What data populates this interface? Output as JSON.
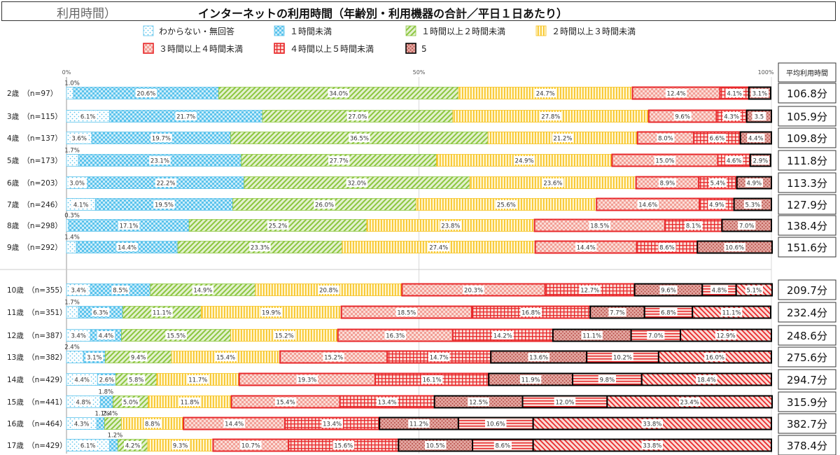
{
  "title": {
    "prefix": "利用時間）",
    "main": "インターネットの利用時間（年齢別・利用機器の合計／平日１日あたり）"
  },
  "chart_data": {
    "type": "bar",
    "orientation": "horizontal",
    "stacked": true,
    "axis_ticks": [
      "0%",
      "50%",
      "100%"
    ],
    "xlim": [
      0,
      100
    ],
    "legend": [
      "わからない・無回答",
      "１時間未満",
      "１時間以上２時間未満",
      "２時間以上３時間未満",
      "３時間以上４時間未満",
      "４時間以上５時間未満",
      "5"
    ],
    "avg_header": "平均利用時間",
    "rows": [
      {
        "label": "2歳　（n=97）",
        "values": [
          1.0,
          20.6,
          34.0,
          24.7,
          12.4,
          4.1,
          3.1
        ],
        "labels": [
          "1.0%",
          "20.6%",
          "34.0%",
          "24.7%",
          "12.4%",
          "4.1%",
          "3.1%"
        ],
        "avg": "106.8分"
      },
      {
        "label": "3歳　（n=115）",
        "values": [
          6.1,
          21.7,
          27.0,
          27.8,
          9.6,
          4.3,
          3.5
        ],
        "labels": [
          "6.1%",
          "21.7%",
          "27.0%",
          "27.8%",
          "9.6%",
          "4.3%",
          "3.5"
        ],
        "avg": "105.9分"
      },
      {
        "label": "4歳　（n=137）",
        "values": [
          3.6,
          19.7,
          36.5,
          21.2,
          8.0,
          6.6,
          4.4
        ],
        "labels": [
          "3.6%",
          "19.7%",
          "36.5%",
          "21.2%",
          "8.0%",
          "6.6%",
          "4.4%"
        ],
        "avg": "109.8分"
      },
      {
        "label": "5歳　（n=173）",
        "values": [
          1.7,
          23.1,
          27.7,
          24.9,
          15.0,
          4.6,
          2.9
        ],
        "labels": [
          "1.7%",
          "23.1%",
          "27.7%",
          "24.9%",
          "15.0%",
          "4.6%",
          "2.9%"
        ],
        "avg": "111.8分"
      },
      {
        "label": "6歳　（n=203）",
        "values": [
          3.0,
          22.2,
          32.0,
          23.6,
          8.9,
          5.4,
          4.9
        ],
        "labels": [
          "3.0%",
          "22.2%",
          "32.0%",
          "23.6%",
          "8.9%",
          "5.4%",
          "4.9%"
        ],
        "avg": "113.3分"
      },
      {
        "label": "7歳　（n=246）",
        "values": [
          4.1,
          19.5,
          26.0,
          25.6,
          14.6,
          4.9,
          5.3
        ],
        "labels": [
          "4.1%",
          "19.5%",
          "26.0%",
          "25.6%",
          "14.6%",
          "4.9%",
          "5.3%"
        ],
        "avg": "127.9分"
      },
      {
        "label": "8歳　（n=298）",
        "values": [
          0.3,
          17.1,
          25.2,
          23.8,
          18.5,
          8.1,
          7.0
        ],
        "labels": [
          "0.3%",
          "17.1%",
          "25.2%",
          "23.8%",
          "18.5%",
          "8.1%",
          "7.0%"
        ],
        "avg": "138.4分"
      },
      {
        "label": "9歳　（n=292）",
        "values": [
          1.4,
          14.4,
          23.3,
          27.4,
          14.4,
          8.6,
          10.6
        ],
        "labels": [
          "1.4%",
          "14.4%",
          "23.3%",
          "27.4%",
          "14.4%",
          "8.6%",
          "10.6%"
        ],
        "avg": "151.6分"
      },
      {
        "label": "10歳　（n=355）",
        "values": [
          3.4,
          8.5,
          14.9,
          20.8,
          20.3,
          12.7,
          9.6,
          4.8,
          5.1
        ],
        "labels": [
          "3.4%",
          "8.5%",
          "14.9%",
          "20.8%",
          "20.3%",
          "12.7%",
          "9.6%",
          "4.8%",
          "5.1%"
        ],
        "avg": "209.7分"
      },
      {
        "label": "11歳　（n=351）",
        "values": [
          1.7,
          6.3,
          11.1,
          19.9,
          18.5,
          16.8,
          7.7,
          6.8,
          11.1
        ],
        "labels": [
          "1.7%",
          "6.3%",
          "11.1%",
          "19.9%",
          "18.5%",
          "16.8%",
          "7.7%",
          "6.8%",
          "11.1%"
        ],
        "avg": "232.4分"
      },
      {
        "label": "12歳　（n=387）",
        "values": [
          3.4,
          4.4,
          15.5,
          15.2,
          16.3,
          14.2,
          11.1,
          7.0,
          12.9
        ],
        "labels": [
          "3.4%",
          "4.4%",
          "15.5%",
          "15.2%",
          "16.3%",
          "14.2%",
          "11.1%",
          "7.0%",
          "12.9%"
        ],
        "avg": "248.6分"
      },
      {
        "label": "13歳　（n=382）",
        "values": [
          2.4,
          3.1,
          9.4,
          15.4,
          15.2,
          14.7,
          13.6,
          10.2,
          16.0
        ],
        "labels": [
          "2.4%",
          "3.1%",
          "9.4%",
          "15.4%",
          "15.2%",
          "14.7%",
          "13.6%",
          "10.2%",
          "16.0%"
        ],
        "avg": "275.6分"
      },
      {
        "label": "14歳　（n=429）",
        "values": [
          4.4,
          2.6,
          5.8,
          11.7,
          19.3,
          16.1,
          11.9,
          9.8,
          18.4
        ],
        "labels": [
          "4.4%",
          "2.6%",
          "5.8%",
          "11.7%",
          "19.3%",
          "16.1%",
          "11.9%",
          "9.8%",
          "18.4%"
        ],
        "avg": "294.7分"
      },
      {
        "label": "15歳　（n=441）",
        "values": [
          4.8,
          1.8,
          5.0,
          11.8,
          15.4,
          13.4,
          12.5,
          12.0,
          23.4
        ],
        "labels": [
          "4.8%",
          "1.8%",
          "5.0%",
          "11.8%",
          "15.4%",
          "13.4%",
          "12.5%",
          "12.0%",
          "23.4%"
        ],
        "avg": "315.9分"
      },
      {
        "label": "16歳　（n=464）",
        "values": [
          4.3,
          1.1,
          2.4,
          8.8,
          14.4,
          13.4,
          11.2,
          10.6,
          33.8
        ],
        "labels": [
          "4.3%",
          "1.1%",
          "2.4%",
          "8.8%",
          "14.4%",
          "13.4%",
          "11.2%",
          "10.6%",
          "33.8%"
        ],
        "avg": "382.7分"
      },
      {
        "label": "17歳　（n=429）",
        "values": [
          6.1,
          1.2,
          4.2,
          9.3,
          10.7,
          15.6,
          10.5,
          8.6,
          33.8
        ],
        "labels": [
          "6.1%",
          "1.2%",
          "4.2%",
          "9.3%",
          "10.7%",
          "15.6%",
          "10.5%",
          "8.6%",
          "33.8%"
        ],
        "avg": "378.4分"
      }
    ]
  },
  "colors": {
    "blue": "#5bc3ec",
    "green": "#8cc63f",
    "yellow": "#f7c21b",
    "red": "#e8282b",
    "dark": "#000000",
    "red_fill": "#f4b0a8"
  }
}
